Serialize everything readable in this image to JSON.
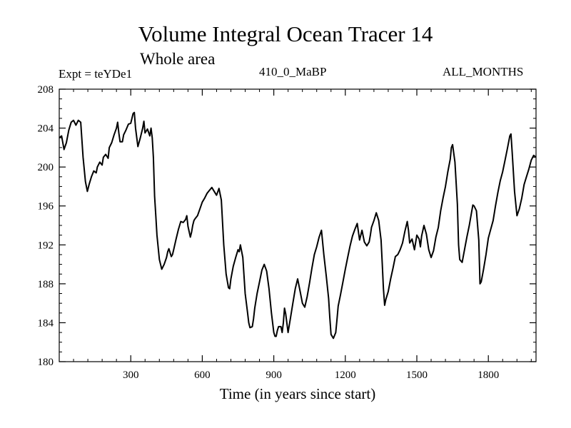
{
  "header": {
    "title": "Volume Integral Ocean Tracer 14",
    "subtitle": "Whole area",
    "experiment": "Expt = teYDe1",
    "period": "410_0_MaBP",
    "months": "ALL_MONTHS"
  },
  "chart_data": {
    "type": "line",
    "title": "Volume Integral Ocean Tracer 14",
    "subtitle": "Whole area",
    "xlabel": "Time (in years since start)",
    "ylabel": "",
    "xlim": [
      0,
      2000
    ],
    "ylim": [
      180,
      208
    ],
    "xticks": [
      300,
      600,
      900,
      1200,
      1500,
      1800
    ],
    "yticks": [
      180,
      184,
      188,
      192,
      196,
      200,
      204,
      208
    ],
    "grid": false,
    "series": [
      {
        "name": "tracer14",
        "color": "#000000",
        "x": [
          0,
          10,
          20,
          30,
          40,
          50,
          60,
          70,
          80,
          90,
          100,
          110,
          118,
          125,
          135,
          145,
          155,
          160,
          170,
          180,
          185,
          195,
          205,
          210,
          220,
          230,
          240,
          245,
          250,
          255,
          265,
          270,
          280,
          290,
          300,
          310,
          315,
          320,
          330,
          340,
          350,
          355,
          360,
          370,
          380,
          385,
          390,
          395,
          400,
          405,
          410,
          420,
          430,
          440,
          450,
          455,
          460,
          465,
          470,
          475,
          480,
          490,
          500,
          510,
          520,
          530,
          535,
          540,
          550,
          555,
          560,
          565,
          570,
          580,
          590,
          600,
          610,
          620,
          630,
          640,
          650,
          660,
          670,
          680,
          690,
          700,
          710,
          715,
          720,
          730,
          740,
          750,
          755,
          760,
          770,
          780,
          790,
          795,
          800,
          810,
          815,
          820,
          830,
          840,
          850,
          860,
          870,
          880,
          890,
          900,
          905,
          910,
          915,
          920,
          930,
          935,
          940,
          945,
          950,
          960,
          970,
          980,
          990,
          1000,
          1010,
          1020,
          1030,
          1040,
          1050,
          1060,
          1070,
          1080,
          1090,
          1100,
          1110,
          1120,
          1130,
          1135,
          1140,
          1150,
          1160,
          1165,
          1170,
          1180,
          1190,
          1200,
          1210,
          1220,
          1230,
          1240,
          1250,
          1260,
          1270,
          1280,
          1290,
          1300,
          1305,
          1310,
          1320,
          1330,
          1340,
          1350,
          1355,
          1360,
          1365,
          1370,
          1380,
          1390,
          1400,
          1410,
          1420,
          1430,
          1440,
          1450,
          1460,
          1465,
          1470,
          1480,
          1490,
          1500,
          1510,
          1515,
          1520,
          1530,
          1540,
          1550,
          1560,
          1570,
          1580,
          1590,
          1600,
          1610,
          1620,
          1630,
          1640,
          1645,
          1650,
          1660,
          1670,
          1675,
          1680,
          1690,
          1700,
          1710,
          1720,
          1730,
          1735,
          1740,
          1750,
          1760,
          1765,
          1770,
          1780,
          1790,
          1800,
          1810,
          1820,
          1830,
          1840,
          1850,
          1860,
          1870,
          1880,
          1890,
          1895,
          1900,
          1910,
          1920,
          1930,
          1940,
          1950,
          1960,
          1970,
          1980,
          1990,
          2000
        ],
        "y": [
          203,
          203.2,
          201.8,
          202.5,
          203.8,
          204.6,
          204.8,
          204.3,
          204.8,
          204.6,
          201,
          198.5,
          197.5,
          198.2,
          199,
          199.6,
          199.4,
          200,
          200.5,
          200.2,
          201,
          201.3,
          200.9,
          202,
          202.5,
          203.3,
          204,
          204.6,
          203.5,
          202.6,
          202.6,
          203.3,
          203.8,
          204.4,
          204.5,
          205.5,
          205.6,
          204,
          202.1,
          203,
          204,
          204.7,
          203.5,
          203.9,
          203.2,
          204,
          203,
          201,
          197,
          195,
          193,
          190.5,
          189.5,
          190,
          190.7,
          191.3,
          191.6,
          191.2,
          190.8,
          191,
          191.5,
          192.6,
          193.6,
          194.4,
          194.3,
          194.6,
          195,
          193.9,
          192.8,
          193.3,
          194,
          194.5,
          194.7,
          195,
          195.7,
          196.4,
          196.8,
          197.3,
          197.6,
          197.9,
          197.5,
          197.1,
          197.8,
          196.6,
          192,
          189,
          187.6,
          187.5,
          188.5,
          189.8,
          190.7,
          191.5,
          191.3,
          192,
          190.7,
          187,
          185,
          184,
          183.5,
          183.6,
          184.4,
          185.5,
          187,
          188.2,
          189.4,
          190,
          189.3,
          187.5,
          185,
          183,
          182.6,
          182.6,
          183.2,
          183.6,
          183.6,
          183,
          184,
          185.5,
          184.9,
          183,
          184.5,
          186,
          187.5,
          188.5,
          187.3,
          186,
          185.6,
          186.7,
          188.1,
          189.6,
          191,
          191.8,
          192.8,
          193.5,
          191,
          188.8,
          186.5,
          184.5,
          182.8,
          182.4,
          183,
          184.3,
          185.7,
          186.9,
          188.2,
          189.5,
          190.7,
          191.9,
          192.9,
          193.6,
          194.2,
          192.5,
          193.5,
          192.3,
          191.9,
          192.3,
          193,
          193.8,
          194.5,
          195.3,
          194.5,
          192.5,
          190,
          187.5,
          185.8,
          186.4,
          187.2,
          188.5,
          189.6,
          190.8,
          191,
          191.5,
          192.2,
          193.4,
          194.4,
          193.5,
          192.2,
          192.6,
          191.5,
          193,
          192.6,
          191.8,
          192.9,
          194,
          193.1,
          191.5,
          190.7,
          191.4,
          192.8,
          193.8,
          195.5,
          196.8,
          198,
          199.5,
          200.8,
          202,
          202.3,
          200.5,
          196.2,
          192,
          190.5,
          190.2,
          191.5,
          192.8,
          194,
          195.4,
          196.1,
          196,
          195.5,
          192.5,
          188,
          188.2,
          189.5,
          191,
          192.7,
          193.6,
          194.5,
          196,
          197.4,
          198.6,
          199.5,
          200.7,
          201.9,
          203.2,
          203.4,
          201.5,
          197.5,
          195,
          195.7,
          196.8,
          198.2,
          199,
          199.8,
          200.7,
          201.2,
          201
        ]
      }
    ]
  }
}
